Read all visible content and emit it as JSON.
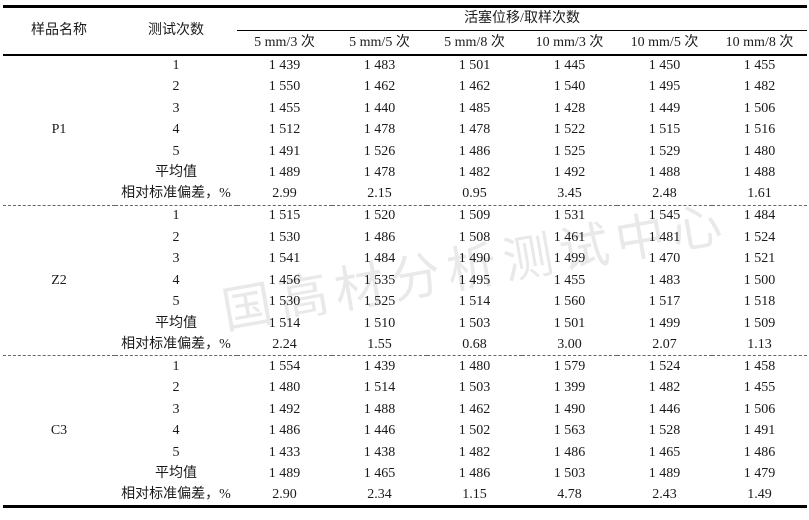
{
  "colors": {
    "text": "#1a1a1a",
    "rule": "#000000",
    "watermark_gray": "#e1e1e1"
  },
  "watermark": {
    "text": "国高材分析测试中心"
  },
  "table": {
    "headers": {
      "sample": "样品名称",
      "test": "测试次数",
      "span": "活塞位移/取样次数",
      "sub": [
        "5 mm/3 次",
        "5 mm/5 次",
        "5 mm/8 次",
        "10 mm/3 次",
        "10 mm/5 次",
        "10 mm/8 次"
      ]
    },
    "groups": [
      {
        "sample": "P1",
        "rows": [
          {
            "label": "1",
            "values": [
              "1 439",
              "1 483",
              "1 501",
              "1 445",
              "1 450",
              "1 455"
            ]
          },
          {
            "label": "2",
            "values": [
              "1 550",
              "1 462",
              "1 462",
              "1 540",
              "1 495",
              "1 482"
            ]
          },
          {
            "label": "3",
            "values": [
              "1 455",
              "1 440",
              "1 485",
              "1 428",
              "1 449",
              "1 506"
            ]
          },
          {
            "label": "4",
            "values": [
              "1 512",
              "1 478",
              "1 478",
              "1 522",
              "1 515",
              "1 516"
            ]
          },
          {
            "label": "5",
            "values": [
              "1 491",
              "1 526",
              "1 486",
              "1 525",
              "1 529",
              "1 480"
            ]
          },
          {
            "label": "平均值",
            "values": [
              "1 489",
              "1 478",
              "1 482",
              "1 492",
              "1 488",
              "1 488"
            ]
          },
          {
            "label": "相对标准偏差，%",
            "values": [
              "2.99",
              "2.15",
              "0.95",
              "3.45",
              "2.48",
              "1.61"
            ]
          }
        ]
      },
      {
        "sample": "Z2",
        "rows": [
          {
            "label": "1",
            "values": [
              "1 515",
              "1 520",
              "1 509",
              "1 531",
              "1 545",
              "1 484"
            ]
          },
          {
            "label": "2",
            "values": [
              "1 530",
              "1 486",
              "1 508",
              "1 461",
              "1 481",
              "1 524"
            ]
          },
          {
            "label": "3",
            "values": [
              "1 541",
              "1 484",
              "1 490",
              "1 499",
              "1 470",
              "1 521"
            ]
          },
          {
            "label": "4",
            "values": [
              "1 456",
              "1 535",
              "1 495",
              "1 455",
              "1 483",
              "1 500"
            ]
          },
          {
            "label": "5",
            "values": [
              "1 530",
              "1 525",
              "1 514",
              "1 560",
              "1 517",
              "1 518"
            ]
          },
          {
            "label": "平均值",
            "values": [
              "1 514",
              "1 510",
              "1 503",
              "1 501",
              "1 499",
              "1 509"
            ]
          },
          {
            "label": "相对标准偏差，%",
            "values": [
              "2.24",
              "1.55",
              "0.68",
              "3.00",
              "2.07",
              "1.13"
            ]
          }
        ]
      },
      {
        "sample": "C3",
        "rows": [
          {
            "label": "1",
            "values": [
              "1 554",
              "1 439",
              "1 480",
              "1 579",
              "1 524",
              "1 458"
            ]
          },
          {
            "label": "2",
            "values": [
              "1 480",
              "1 514",
              "1 503",
              "1 399",
              "1 482",
              "1 455"
            ]
          },
          {
            "label": "3",
            "values": [
              "1 492",
              "1 488",
              "1 462",
              "1 490",
              "1 446",
              "1 506"
            ]
          },
          {
            "label": "4",
            "values": [
              "1 486",
              "1 446",
              "1 502",
              "1 563",
              "1 528",
              "1 491"
            ]
          },
          {
            "label": "5",
            "values": [
              "1 433",
              "1 438",
              "1 482",
              "1 486",
              "1 465",
              "1 486"
            ]
          },
          {
            "label": "平均值",
            "values": [
              "1 489",
              "1 465",
              "1 486",
              "1 503",
              "1 489",
              "1 479"
            ]
          },
          {
            "label": "相对标准偏差，%",
            "values": [
              "2.90",
              "2.34",
              "1.15",
              "4.78",
              "2.43",
              "1.49"
            ]
          }
        ]
      }
    ]
  }
}
